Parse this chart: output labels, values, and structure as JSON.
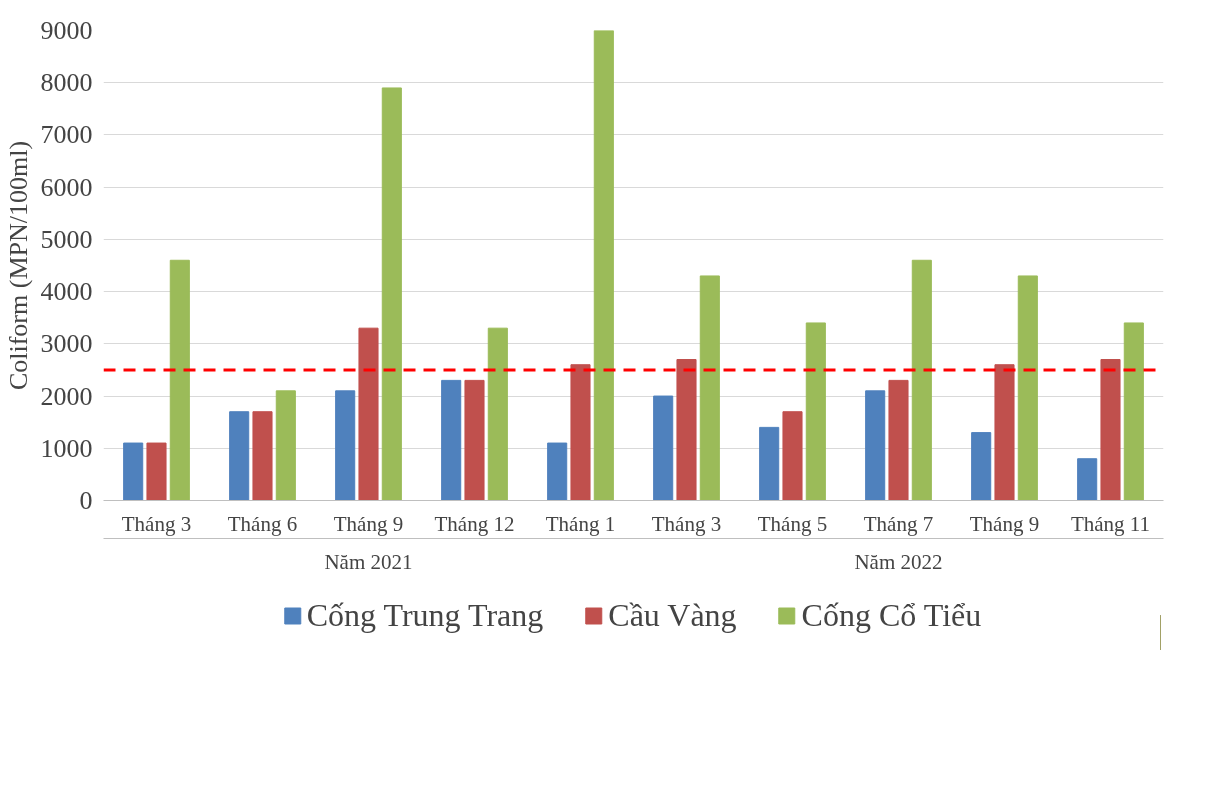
{
  "chart_data": {
    "type": "bar",
    "ylabel": "Coliform (MPN/100ml)",
    "categories": [
      "Tháng 3",
      "Tháng 6",
      "Tháng 9",
      "Tháng 12",
      "Tháng 1",
      "Tháng 3",
      "Tháng 5",
      "Tháng 7",
      "Tháng 9",
      "Tháng 11"
    ],
    "series": [
      {
        "name": "Cống Trung Trang",
        "color": "#4f81bd",
        "values": [
          1100,
          1700,
          2100,
          2300,
          1100,
          2000,
          1400,
          2100,
          1300,
          800
        ]
      },
      {
        "name": "Cầu Vàng",
        "color": "#c0504d",
        "values": [
          1100,
          1700,
          3300,
          2300,
          2600,
          2700,
          1700,
          2300,
          2600,
          2700
        ]
      },
      {
        "name": "Cống Cổ Tiểu",
        "color": "#9bbb59",
        "values": [
          4600,
          2100,
          7900,
          3300,
          9000,
          4300,
          3400,
          4600,
          4300,
          3400
        ]
      }
    ],
    "annotations": [
      "Năm 2021",
      "Năm 2022"
    ],
    "ylim": [
      0,
      9000
    ],
    "yticks": [
      0,
      1000,
      2000,
      3000,
      4000,
      5000,
      6000,
      7000,
      8000,
      9000
    ],
    "grid": "y",
    "legend": "bottom",
    "ref_lines": [
      {
        "axis": "y",
        "value": 2500,
        "color": "#ff0000",
        "line_style": "dashed"
      }
    ]
  }
}
